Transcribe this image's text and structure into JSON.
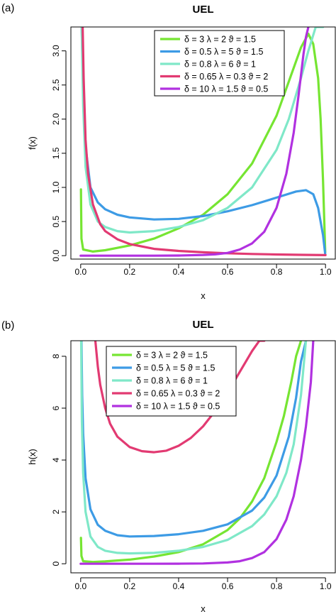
{
  "panel_labels": [
    "(a)",
    "(b)"
  ],
  "chart_data": [
    {
      "type": "line",
      "title": "UEL",
      "xlabel": "x",
      "ylabel": "f(x)",
      "xlim": [
        -0.04,
        1.04
      ],
      "ylim": [
        -0.05,
        3.35
      ],
      "xticks": [
        "0.0",
        "0.2",
        "0.4",
        "0.6",
        "0.8",
        "1.0"
      ],
      "yticks": [
        "0.0",
        "0.5",
        "1.0",
        "1.5",
        "2.0",
        "2.5",
        "3.0"
      ],
      "grid": false,
      "legend_position": "top-right",
      "series": [
        {
          "name": "δ = 3  λ = 2  ϑ = 1.5",
          "color": "#76e532",
          "x": [
            0.001,
            0.003,
            0.01,
            0.05,
            0.1,
            0.2,
            0.3,
            0.4,
            0.5,
            0.6,
            0.7,
            0.8,
            0.85,
            0.9,
            0.93,
            0.95,
            0.97,
            0.98,
            0.99,
            0.999
          ],
          "y": [
            0.97,
            0.25,
            0.09,
            0.06,
            0.08,
            0.15,
            0.25,
            0.4,
            0.6,
            0.9,
            1.35,
            2.05,
            2.55,
            3.05,
            3.25,
            3.1,
            2.6,
            2.0,
            1.1,
            0.05
          ]
        },
        {
          "name": "δ = 0.5  λ = 5  ϑ = 1.5",
          "color": "#3d9be5",
          "x": [
            0.004,
            0.01,
            0.02,
            0.04,
            0.07,
            0.1,
            0.15,
            0.2,
            0.3,
            0.4,
            0.5,
            0.6,
            0.7,
            0.8,
            0.88,
            0.92,
            0.95,
            0.97,
            0.99,
            0.999
          ],
          "y": [
            3.35,
            2.5,
            1.6,
            1.0,
            0.78,
            0.68,
            0.6,
            0.56,
            0.53,
            0.54,
            0.58,
            0.65,
            0.74,
            0.85,
            0.94,
            0.96,
            0.9,
            0.7,
            0.3,
            0.02
          ]
        },
        {
          "name": "δ = 0.8  λ = 6  ϑ = 1",
          "color": "#7fe8c8",
          "x": [
            0.004,
            0.01,
            0.02,
            0.04,
            0.07,
            0.1,
            0.15,
            0.2,
            0.3,
            0.4,
            0.5,
            0.6,
            0.7,
            0.8,
            0.85,
            0.9,
            0.93,
            0.96,
            0.98,
            0.99
          ],
          "y": [
            3.35,
            2.2,
            1.3,
            0.75,
            0.5,
            0.42,
            0.36,
            0.34,
            0.36,
            0.42,
            0.52,
            0.7,
            1.0,
            1.55,
            2.0,
            2.6,
            3.0,
            3.35,
            3.35,
            3.35
          ]
        },
        {
          "name": "δ = 0.65  λ = 0.3  ϑ = 2",
          "color": "#e23a72",
          "x": [
            0.008,
            0.012,
            0.02,
            0.03,
            0.05,
            0.08,
            0.1,
            0.15,
            0.2,
            0.3,
            0.4,
            0.5,
            0.6,
            0.7,
            0.8,
            0.9,
            1.0
          ],
          "y": [
            3.35,
            2.6,
            1.7,
            1.2,
            0.75,
            0.46,
            0.36,
            0.24,
            0.17,
            0.1,
            0.07,
            0.05,
            0.035,
            0.025,
            0.018,
            0.012,
            0.008
          ]
        },
        {
          "name": "δ = 10  λ = 1.5  ϑ = 0.5",
          "color": "#b131e0",
          "x": [
            0.0,
            0.1,
            0.2,
            0.3,
            0.4,
            0.5,
            0.55,
            0.6,
            0.65,
            0.7,
            0.75,
            0.8,
            0.84,
            0.87,
            0.89,
            0.91,
            0.92,
            0.93
          ],
          "y": [
            0.0,
            0.0,
            0.0,
            0.0,
            0.002,
            0.01,
            0.02,
            0.04,
            0.09,
            0.18,
            0.35,
            0.7,
            1.2,
            1.8,
            2.35,
            2.95,
            3.2,
            3.35
          ]
        }
      ]
    },
    {
      "type": "line",
      "title": "UEL",
      "xlabel": "x",
      "ylabel": "h(x)",
      "xlim": [
        -0.04,
        1.04
      ],
      "ylim": [
        -0.35,
        8.6
      ],
      "xticks": [
        "0.0",
        "0.2",
        "0.4",
        "0.6",
        "0.8",
        "1.0"
      ],
      "yticks": [
        "0",
        "2",
        "4",
        "6",
        "8"
      ],
      "grid": false,
      "legend_position": "top-left",
      "series": [
        {
          "name": "δ = 3  λ = 2  ϑ = 1.5",
          "color": "#76e532",
          "x": [
            0.001,
            0.003,
            0.01,
            0.05,
            0.1,
            0.2,
            0.3,
            0.4,
            0.5,
            0.6,
            0.65,
            0.7,
            0.75,
            0.8,
            0.83,
            0.86,
            0.88,
            0.9
          ],
          "y": [
            1.0,
            0.3,
            0.1,
            0.07,
            0.09,
            0.16,
            0.28,
            0.45,
            0.75,
            1.3,
            1.75,
            2.4,
            3.3,
            4.7,
            5.7,
            7.0,
            8.0,
            8.6
          ]
        },
        {
          "name": "δ = 0.5  λ = 5  ϑ = 1.5",
          "color": "#3d9be5",
          "x": [
            0.003,
            0.006,
            0.01,
            0.02,
            0.04,
            0.07,
            0.1,
            0.15,
            0.2,
            0.3,
            0.4,
            0.5,
            0.6,
            0.7,
            0.75,
            0.8,
            0.85,
            0.88,
            0.9,
            0.92
          ],
          "y": [
            8.6,
            6.5,
            5.0,
            3.3,
            2.1,
            1.5,
            1.27,
            1.1,
            1.05,
            1.07,
            1.14,
            1.27,
            1.52,
            2.05,
            2.55,
            3.4,
            4.9,
            6.4,
            7.8,
            8.6
          ]
        },
        {
          "name": "δ = 0.8  λ = 6  ϑ = 1",
          "color": "#7fe8c8",
          "x": [
            0.002,
            0.005,
            0.01,
            0.02,
            0.04,
            0.07,
            0.1,
            0.15,
            0.2,
            0.3,
            0.4,
            0.5,
            0.6,
            0.7,
            0.75,
            0.8,
            0.84,
            0.87,
            0.9,
            0.92
          ],
          "y": [
            8.6,
            5.5,
            3.5,
            2.0,
            1.05,
            0.65,
            0.5,
            0.42,
            0.4,
            0.42,
            0.5,
            0.65,
            0.92,
            1.45,
            1.9,
            2.6,
            3.5,
            4.6,
            6.5,
            8.6
          ]
        },
        {
          "name": "δ = 0.65  λ = 0.3  ϑ = 2",
          "color": "#e23a72",
          "x": [
            0.06,
            0.07,
            0.08,
            0.1,
            0.12,
            0.15,
            0.2,
            0.25,
            0.3,
            0.35,
            0.4,
            0.45,
            0.5,
            0.55,
            0.6,
            0.65,
            0.7,
            0.73,
            0.75
          ],
          "y": [
            8.6,
            7.6,
            6.9,
            6.0,
            5.4,
            4.9,
            4.5,
            4.34,
            4.3,
            4.36,
            4.55,
            4.85,
            5.3,
            5.9,
            6.6,
            7.4,
            8.2,
            8.6,
            8.6
          ]
        },
        {
          "name": "δ = 10  λ = 1.5  ϑ = 0.5",
          "color": "#b131e0",
          "x": [
            0.0,
            0.1,
            0.2,
            0.3,
            0.4,
            0.5,
            0.6,
            0.65,
            0.7,
            0.75,
            0.8,
            0.84,
            0.87,
            0.9,
            0.92,
            0.94,
            0.95
          ],
          "y": [
            0.0,
            0.0,
            0.0,
            0.0,
            0.002,
            0.01,
            0.05,
            0.1,
            0.22,
            0.45,
            0.95,
            1.7,
            2.6,
            4.0,
            5.3,
            7.0,
            8.6
          ]
        }
      ]
    }
  ]
}
